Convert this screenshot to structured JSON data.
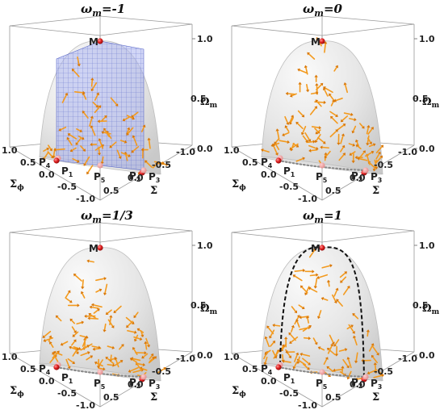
{
  "chart_data": [
    {
      "type": "vector-field-3d",
      "title": "ω",
      "title_sub": "m",
      "title_value": "=-1",
      "axes": {
        "sigma": {
          "label": "Σ",
          "ticks": [
            "0.5",
            "0.0",
            "-0.5",
            "-1.0"
          ]
        },
        "sigma_phi": {
          "label": "Σ",
          "label_sub": "ϕ",
          "ticks": [
            "1.0",
            "0.5",
            "0.0",
            "-0.5",
            "-1.0"
          ]
        },
        "omega": {
          "label": "Ω",
          "label_sub": "m",
          "ticks": [
            "1.0",
            "0.5",
            "0.0"
          ],
          "range": [
            0,
            1
          ]
        }
      },
      "points": [
        {
          "name": "M",
          "sigma": 0,
          "sigma_phi": 0,
          "omega": 1
        },
        {
          "name": "P",
          "sub": "1",
          "sigma": 1,
          "sigma_phi": 0,
          "omega": 0
        },
        {
          "name": "P",
          "sub": "2",
          "sigma": -1,
          "sigma_phi": 0,
          "omega": 0
        },
        {
          "name": "P",
          "sub": "3",
          "sigma": 0,
          "sigma_phi": -1,
          "omega": 0
        },
        {
          "name": "P",
          "sub": "4",
          "sigma": 0,
          "sigma_phi": 1,
          "omega": 0
        },
        {
          "name": "P",
          "sub": "5",
          "sigma": 0,
          "sigma_phi": 0,
          "omega": 0
        }
      ],
      "invariant_plane": true,
      "dotted_curve": false,
      "dashed_curve": false
    },
    {
      "type": "vector-field-3d",
      "title": "ω",
      "title_sub": "m",
      "title_value": "=0",
      "axes": {
        "sigma": {
          "label": "Σ",
          "ticks": [
            "0.5",
            "0.0",
            "-0.5",
            "-1.0"
          ]
        },
        "sigma_phi": {
          "label": "Σ",
          "label_sub": "ϕ",
          "ticks": [
            "1.0",
            "0.5",
            "0.0",
            "-0.5",
            "-1.0"
          ]
        },
        "omega": {
          "label": "Ω",
          "label_sub": "m",
          "ticks": [
            "1.0",
            "0.5",
            "0.0"
          ],
          "range": [
            0,
            1
          ]
        }
      },
      "points": [
        {
          "name": "M",
          "sigma": 0,
          "sigma_phi": 0,
          "omega": 1
        },
        {
          "name": "P",
          "sub": "1",
          "sigma": 1,
          "sigma_phi": 0,
          "omega": 0
        },
        {
          "name": "P",
          "sub": "2",
          "sigma": -1,
          "sigma_phi": 0,
          "omega": 0
        },
        {
          "name": "P",
          "sub": "3",
          "sigma": 0,
          "sigma_phi": -1,
          "omega": 0
        },
        {
          "name": "P",
          "sub": "4",
          "sigma": 0,
          "sigma_phi": 1,
          "omega": 0
        },
        {
          "name": "P",
          "sub": "5",
          "sigma": 0,
          "sigma_phi": 0,
          "omega": 0
        }
      ],
      "invariant_plane": false,
      "dotted_curve": true,
      "dashed_curve": false
    },
    {
      "type": "vector-field-3d",
      "title": "ω",
      "title_sub": "m",
      "title_value": "=1/3",
      "axes": {
        "sigma": {
          "label": "Σ",
          "ticks": [
            "0.5",
            "0.0",
            "-0.5",
            "-1.0"
          ]
        },
        "sigma_phi": {
          "label": "Σ",
          "label_sub": "ϕ",
          "ticks": [
            "1.0",
            "0.5",
            "0.0",
            "-0.5",
            "-1.0"
          ]
        },
        "omega": {
          "label": "Ω",
          "label_sub": "m",
          "ticks": [
            "1.0",
            "0.5",
            "0.0"
          ],
          "range": [
            0,
            1
          ]
        }
      },
      "points": [
        {
          "name": "M",
          "sigma": 0,
          "sigma_phi": 0,
          "omega": 1
        },
        {
          "name": "P",
          "sub": "1",
          "sigma": 1,
          "sigma_phi": 0,
          "omega": 0
        },
        {
          "name": "P",
          "sub": "2",
          "sigma": -1,
          "sigma_phi": 0,
          "omega": 0
        },
        {
          "name": "P",
          "sub": "3",
          "sigma": 0,
          "sigma_phi": -1,
          "omega": 0
        },
        {
          "name": "P",
          "sub": "4",
          "sigma": 0,
          "sigma_phi": 1,
          "omega": 0
        },
        {
          "name": "P",
          "sub": "5",
          "sigma": 0,
          "sigma_phi": 0,
          "omega": 0
        }
      ],
      "invariant_plane": false,
      "dotted_curve": true,
      "dashed_curve": false
    },
    {
      "type": "vector-field-3d",
      "title": "ω",
      "title_sub": "m",
      "title_value": "=1",
      "axes": {
        "sigma": {
          "label": "Σ",
          "ticks": [
            "0.5",
            "0.0",
            "-0.5",
            "-1.0"
          ]
        },
        "sigma_phi": {
          "label": "Σ",
          "label_sub": "ϕ",
          "ticks": [
            "1.0",
            "0.5",
            "0.0",
            "-0.5",
            "-1.0"
          ]
        },
        "omega": {
          "label": "Ω",
          "label_sub": "m",
          "ticks": [
            "1.0",
            "0.5",
            "0.0"
          ],
          "range": [
            0,
            1
          ]
        }
      },
      "points": [
        {
          "name": "M",
          "sigma": 0,
          "sigma_phi": 0,
          "omega": 1
        },
        {
          "name": "P",
          "sub": "1",
          "sigma": 1,
          "sigma_phi": 0,
          "omega": 0
        },
        {
          "name": "P",
          "sub": "2",
          "sigma": -1,
          "sigma_phi": 0,
          "omega": 0
        },
        {
          "name": "P",
          "sub": "3",
          "sigma": 0,
          "sigma_phi": -1,
          "omega": 0
        },
        {
          "name": "P",
          "sub": "4",
          "sigma": 0,
          "sigma_phi": 1,
          "omega": 0
        },
        {
          "name": "P",
          "sub": "5",
          "sigma": 0,
          "sigma_phi": 0,
          "omega": 0
        }
      ],
      "invariant_plane": false,
      "dotted_curve": true,
      "dashed_curve": true
    }
  ],
  "colors": {
    "arrow": "#f39a1e",
    "arrow_dark": "#d9780a",
    "surface": "#e3e3e3",
    "surface_edge": "#bdbdbd",
    "point": "#e02020",
    "plane": "#7f8fe0",
    "box": "#9a9a9a"
  }
}
